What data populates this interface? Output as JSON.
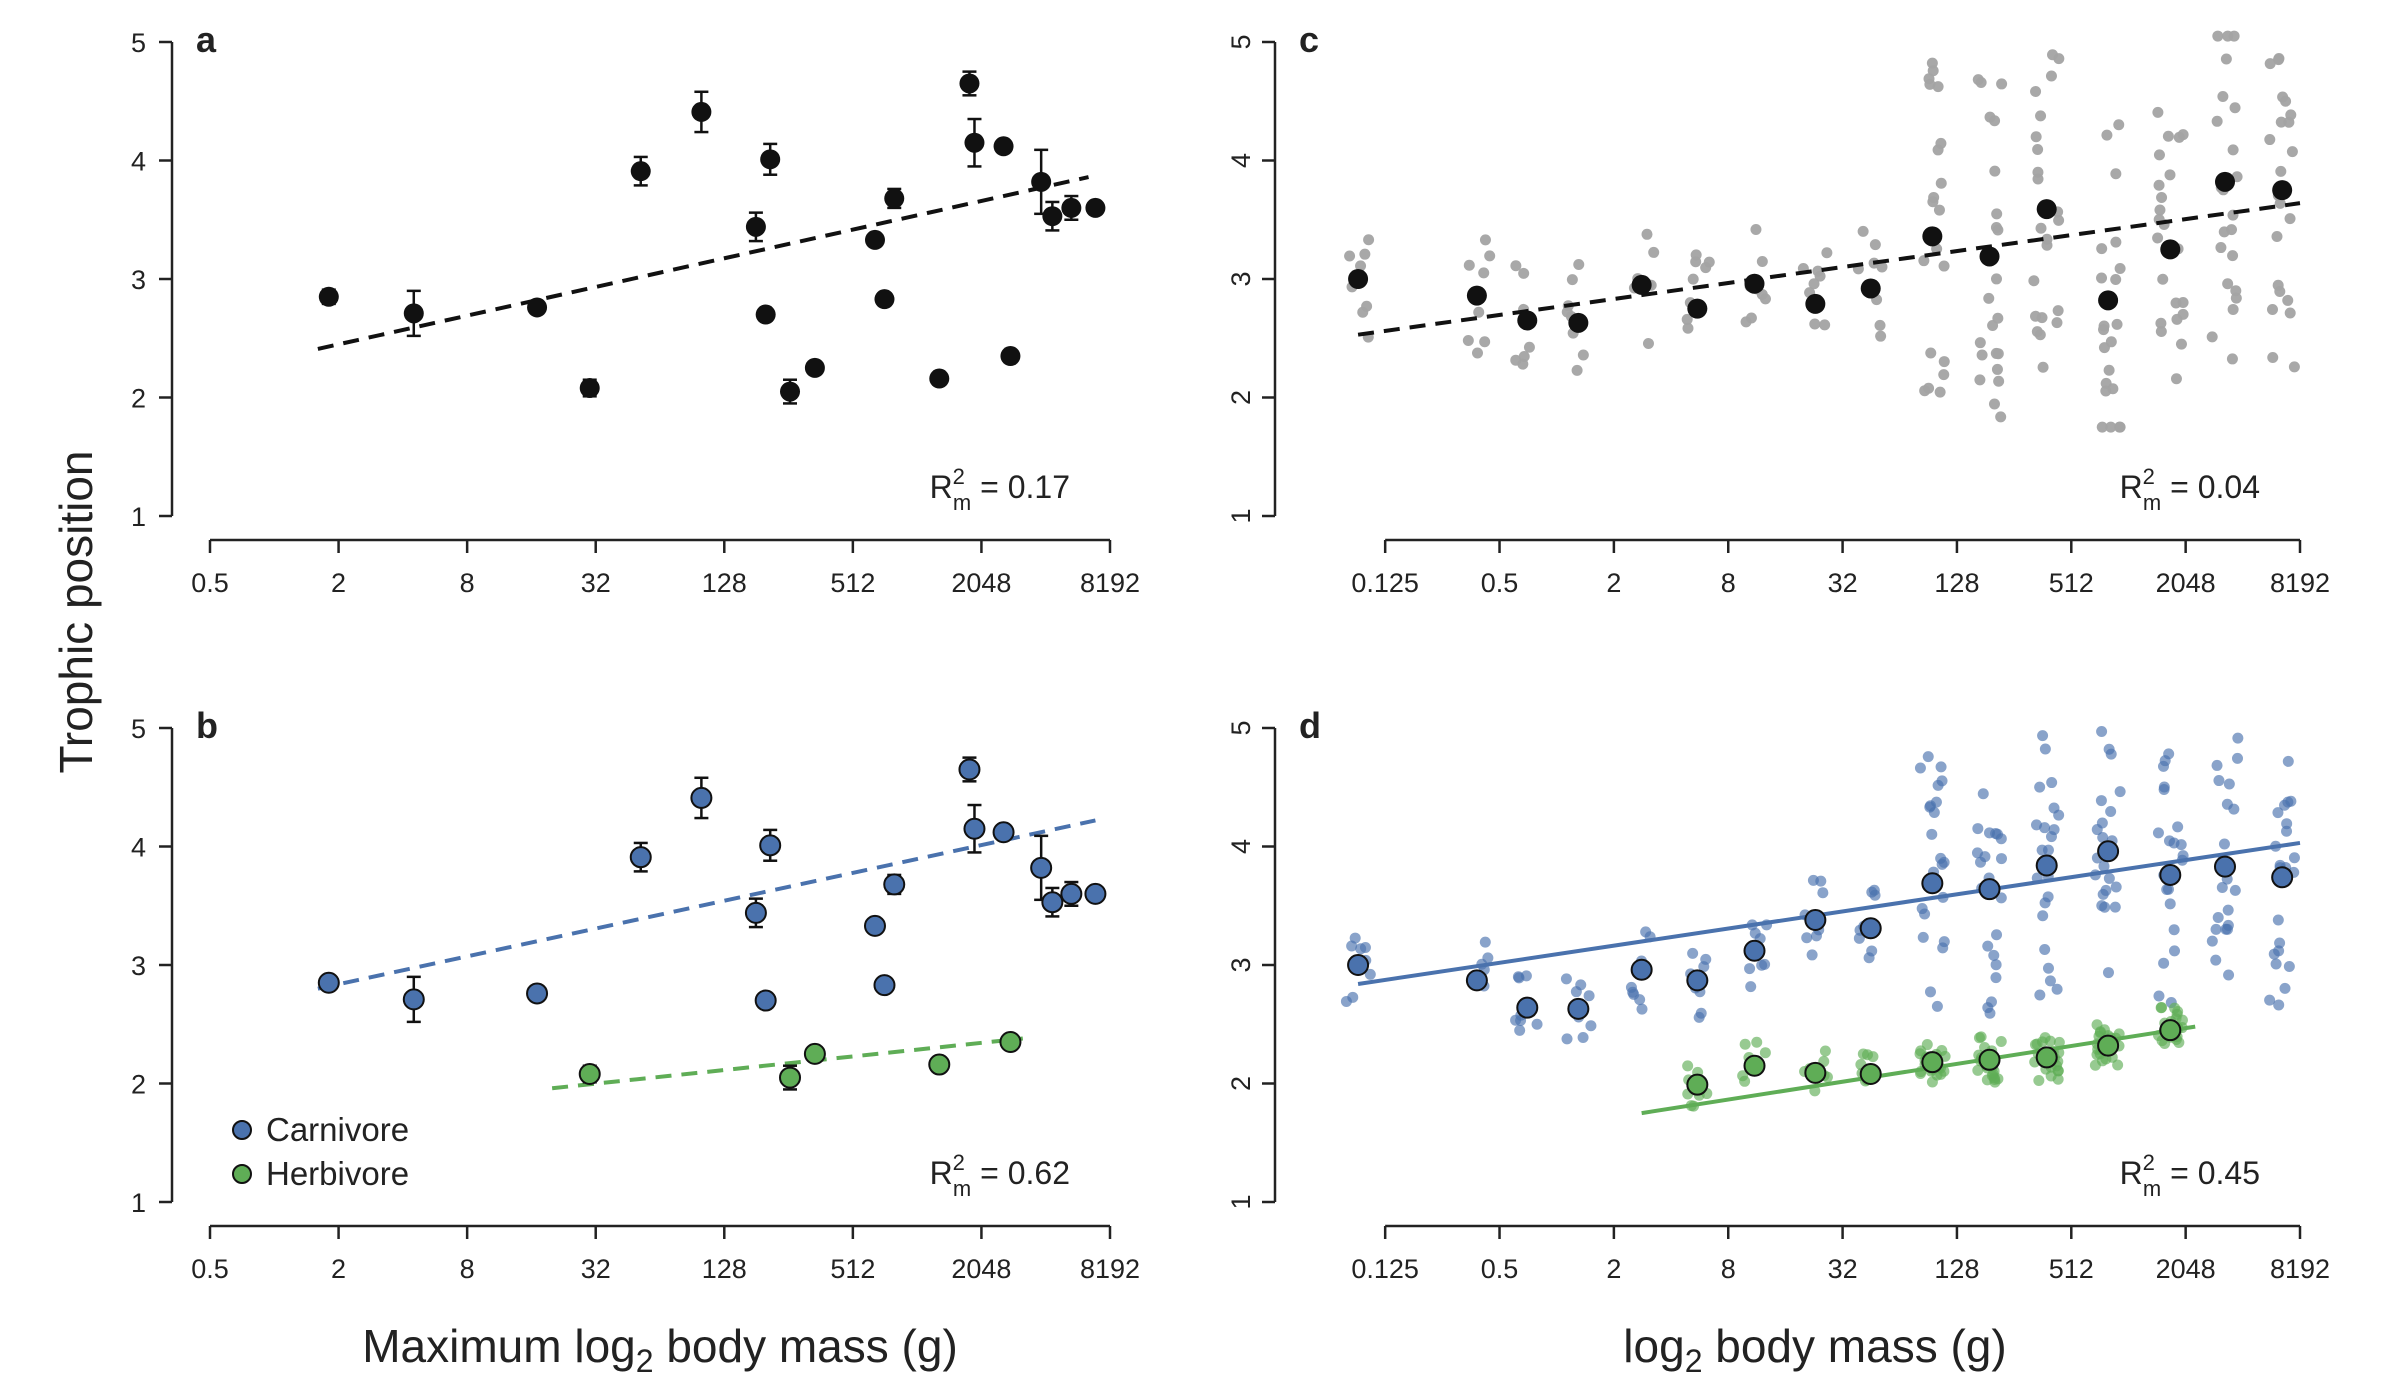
{
  "figure": {
    "y_axis_title": "Trophic position",
    "x_axis_title_left": {
      "prefix": "Maximum log",
      "sub": "2",
      "suffix": " body mass (g)"
    },
    "x_axis_title_right": {
      "prefix": "log",
      "sub": "2",
      "suffix": " body mass (g)"
    }
  },
  "colors": {
    "carnivore": "#4a72ad",
    "herbivore": "#5fad56",
    "black": "#111111",
    "grey": "#a3a3a3"
  },
  "chart_data": [
    {
      "panel": "a",
      "type": "scatter",
      "x_scale": "log2",
      "xlim": [
        0.5,
        8192
      ],
      "ylim": [
        1,
        5
      ],
      "x_ticks": [
        "0.5",
        "2",
        "8",
        "32",
        "128",
        "512",
        "2048",
        "8192"
      ],
      "y_ticks": [
        "1",
        "2",
        "3",
        "4",
        "5"
      ],
      "r2": {
        "label": "R",
        "sup": "2",
        "sub": "m",
        "value": "0.17"
      },
      "series": [
        {
          "group": "all",
          "points": [
            [
              1.8,
              2.85,
              0.06
            ],
            [
              4.5,
              2.71,
              0.19
            ],
            [
              17,
              2.76,
              0
            ],
            [
              30,
              2.08,
              0.07
            ],
            [
              52,
              3.91,
              0.12
            ],
            [
              100,
              4.41,
              0.17
            ],
            [
              180,
              3.44,
              0.12
            ],
            [
              200,
              2.7,
              0
            ],
            [
              210,
              4.01,
              0.13
            ],
            [
              260,
              2.05,
              0.1
            ],
            [
              340,
              2.25,
              0
            ],
            [
              650,
              3.33,
              0
            ],
            [
              720,
              2.83,
              0
            ],
            [
              800,
              3.68,
              0.08
            ],
            [
              1300,
              2.16,
              0
            ],
            [
              1800,
              4.65,
              0.1
            ],
            [
              1900,
              4.15,
              0.2
            ],
            [
              2600,
              4.12,
              0
            ],
            [
              2800,
              2.35,
              0
            ],
            [
              3900,
              3.82,
              0.27
            ],
            [
              4400,
              3.53,
              0.12
            ],
            [
              5400,
              3.6,
              0.1
            ],
            [
              7000,
              3.6,
              0
            ]
          ]
        }
      ],
      "fits": [
        {
          "group": "all",
          "style": "dashed",
          "x": [
            1.6,
            6500
          ],
          "y": [
            2.41,
            3.86
          ]
        }
      ]
    },
    {
      "panel": "b",
      "type": "scatter",
      "x_scale": "log2",
      "xlim": [
        0.5,
        8192
      ],
      "ylim": [
        1,
        5
      ],
      "x_ticks": [
        "0.5",
        "2",
        "8",
        "32",
        "128",
        "512",
        "2048",
        "8192"
      ],
      "y_ticks": [
        "1",
        "2",
        "3",
        "4",
        "5"
      ],
      "r2": {
        "label": "R",
        "sup": "2",
        "sub": "m",
        "value": "0.62"
      },
      "legend": {
        "position": "bottom-left",
        "entries": [
          {
            "key": "carnivore",
            "label": "Carnivore"
          },
          {
            "key": "herbivore",
            "label": "Herbivore"
          }
        ]
      },
      "series": [
        {
          "group": "carnivore",
          "points": [
            [
              1.8,
              2.85,
              0.06
            ],
            [
              4.5,
              2.71,
              0.19
            ],
            [
              17,
              2.76,
              0
            ],
            [
              52,
              3.91,
              0.12
            ],
            [
              100,
              4.41,
              0.17
            ],
            [
              180,
              3.44,
              0.12
            ],
            [
              200,
              2.7,
              0
            ],
            [
              210,
              4.01,
              0.13
            ],
            [
              650,
              3.33,
              0
            ],
            [
              720,
              2.83,
              0
            ],
            [
              800,
              3.68,
              0.08
            ],
            [
              1800,
              4.65,
              0.1
            ],
            [
              1900,
              4.15,
              0.2
            ],
            [
              2600,
              4.12,
              0
            ],
            [
              3900,
              3.82,
              0.27
            ],
            [
              4400,
              3.53,
              0.12
            ],
            [
              5400,
              3.6,
              0.1
            ],
            [
              7000,
              3.6,
              0
            ]
          ]
        },
        {
          "group": "herbivore",
          "points": [
            [
              30,
              2.08,
              0.07
            ],
            [
              260,
              2.05,
              0.1
            ],
            [
              340,
              2.25,
              0
            ],
            [
              1300,
              2.16,
              0
            ],
            [
              2800,
              2.35,
              0
            ]
          ]
        }
      ],
      "fits": [
        {
          "group": "carnivore",
          "style": "dashed",
          "x": [
            1.6,
            7000
          ],
          "y": [
            2.8,
            4.22
          ]
        },
        {
          "group": "herbivore",
          "style": "dashed",
          "x": [
            20,
            3200
          ],
          "y": [
            1.96,
            2.38
          ]
        }
      ]
    },
    {
      "panel": "c",
      "type": "scatter",
      "x_scale": "log2",
      "xlim": [
        0.0625,
        8192
      ],
      "ylim": [
        1,
        5
      ],
      "x_ticks": [
        "0.125",
        "0.5",
        "2",
        "8",
        "32",
        "128",
        "512",
        "2048",
        "8192"
      ],
      "y_ticks": [
        "1",
        "2",
        "3",
        "4",
        "5"
      ],
      "r2": {
        "label": "R",
        "sup": "2",
        "sub": "m",
        "value": "0.04"
      },
      "series": [
        {
          "group": "binned-means",
          "points": [
            [
              0.09,
              3.0
            ],
            [
              0.38,
              2.86
            ],
            [
              0.7,
              2.65
            ],
            [
              1.3,
              2.63
            ],
            [
              2.8,
              2.95
            ],
            [
              5.5,
              2.75
            ],
            [
              11,
              2.96
            ],
            [
              23,
              2.79
            ],
            [
              45,
              2.92
            ],
            [
              95,
              3.36
            ],
            [
              190,
              3.19
            ],
            [
              380,
              3.59
            ],
            [
              800,
              2.82
            ],
            [
              1700,
              3.25
            ],
            [
              3300,
              3.82
            ],
            [
              6600,
              3.75
            ]
          ]
        }
      ],
      "fits": [
        {
          "group": "all",
          "style": "dashed",
          "x": [
            0.09,
            8192
          ],
          "y": [
            2.53,
            3.64
          ]
        }
      ]
    },
    {
      "panel": "d",
      "type": "scatter",
      "x_scale": "log2",
      "xlim": [
        0.0625,
        8192
      ],
      "ylim": [
        1,
        5
      ],
      "x_ticks": [
        "0.125",
        "0.5",
        "2",
        "8",
        "32",
        "128",
        "512",
        "2048",
        "8192"
      ],
      "y_ticks": [
        "1",
        "2",
        "3",
        "4",
        "5"
      ],
      "r2": {
        "label": "R",
        "sup": "2",
        "sub": "m",
        "value": "0.45"
      },
      "series": [
        {
          "group": "carnivore",
          "points": [
            [
              0.09,
              3.0
            ],
            [
              0.38,
              2.87
            ],
            [
              0.7,
              2.64
            ],
            [
              1.3,
              2.63
            ],
            [
              2.8,
              2.96
            ],
            [
              5.5,
              2.87
            ],
            [
              11,
              3.12
            ],
            [
              23,
              3.38
            ],
            [
              45,
              3.31
            ],
            [
              95,
              3.69
            ],
            [
              190,
              3.64
            ],
            [
              380,
              3.84
            ],
            [
              800,
              3.96
            ],
            [
              1700,
              3.76
            ],
            [
              3300,
              3.83
            ],
            [
              6600,
              3.74
            ]
          ]
        },
        {
          "group": "herbivore",
          "points": [
            [
              5.5,
              1.99
            ],
            [
              11,
              2.15
            ],
            [
              23,
              2.09
            ],
            [
              45,
              2.08
            ],
            [
              95,
              2.18
            ],
            [
              190,
              2.2
            ],
            [
              380,
              2.22
            ],
            [
              800,
              2.32
            ],
            [
              1700,
              2.45
            ]
          ]
        }
      ],
      "fits": [
        {
          "group": "carnivore",
          "style": "solid",
          "x": [
            0.09,
            8192
          ],
          "y": [
            2.84,
            4.03
          ]
        },
        {
          "group": "herbivore",
          "style": "solid",
          "x": [
            2.8,
            2300
          ],
          "y": [
            1.75,
            2.48
          ]
        }
      ]
    }
  ]
}
